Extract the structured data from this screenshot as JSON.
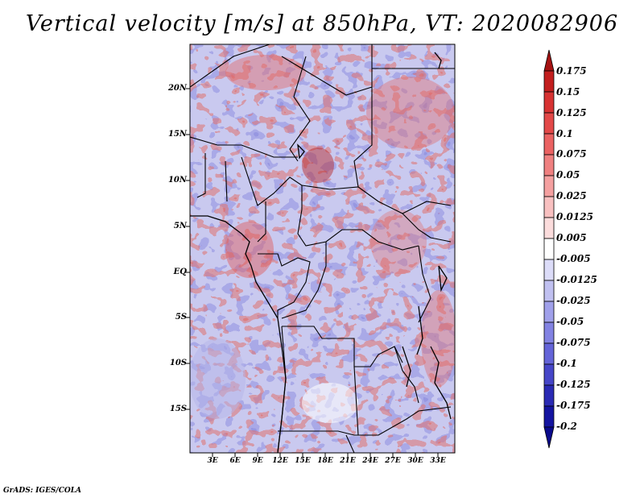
{
  "title": "Vertical velocity [m/s] at 850hPa, VT: 2020082906",
  "credit": "GrADS: IGES/COLA",
  "map": {
    "region": "Central Africa",
    "lon_range": [
      0,
      35
    ],
    "lat_range": [
      -20,
      25
    ],
    "y_labels": [
      "20N",
      "15N",
      "10N",
      "5N",
      "EQ",
      "5S",
      "10S",
      "15S"
    ],
    "x_labels": [
      "3E",
      "6E",
      "9E",
      "12E",
      "15E",
      "18E",
      "21E",
      "24E",
      "27E",
      "30E",
      "33E"
    ]
  },
  "colorbar": {
    "labels": [
      "0.175",
      "0.15",
      "0.125",
      "0.1",
      "0.075",
      "0.05",
      "0.025",
      "0.0125",
      "0.005",
      "-0.005",
      "-0.0125",
      "-0.025",
      "-0.05",
      "-0.075",
      "-0.1",
      "-0.125",
      "-0.175",
      "-0.2"
    ],
    "colors": [
      "#a51212",
      "#c21e1e",
      "#d73232",
      "#e24848",
      "#ea6262",
      "#ef8080",
      "#f4a0a0",
      "#f8c0c0",
      "#fbdcdc",
      "#ffffff",
      "#dcdcf8",
      "#c0c0f0",
      "#a0a0ea",
      "#8282e2",
      "#6464d8",
      "#4646c8",
      "#2a2ab4",
      "#1414a0",
      "#0a0a8c"
    ]
  }
}
